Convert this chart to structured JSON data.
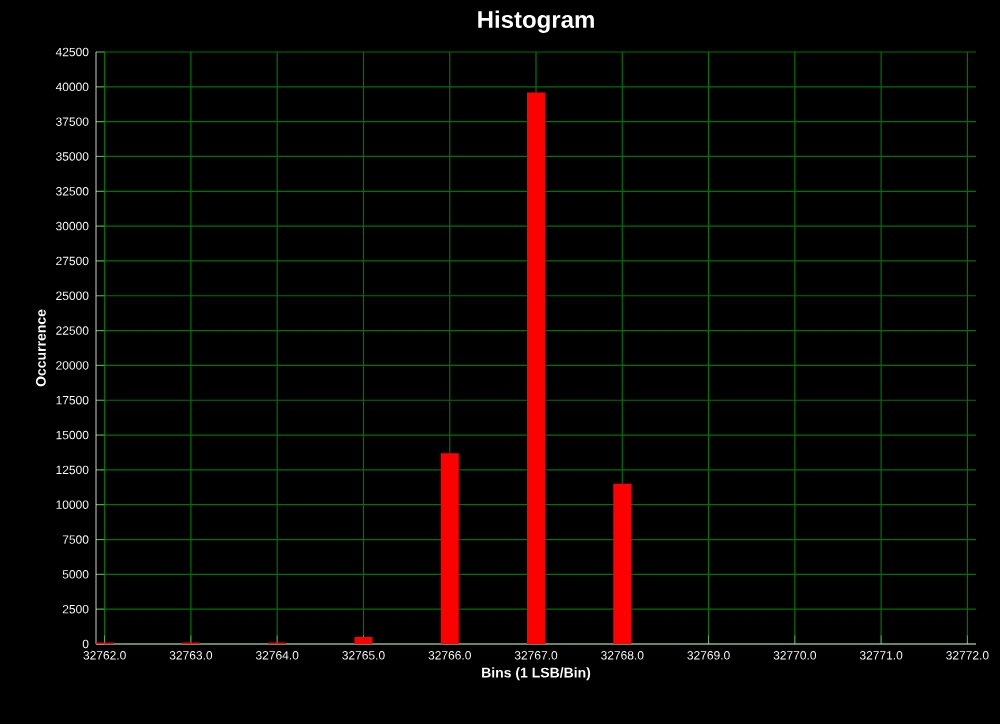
{
  "chart_data": {
    "type": "bar",
    "title": "Histogram",
    "xlabel": "Bins (1 LSB/Bin)",
    "ylabel": "Occurrence",
    "x": [
      32762,
      32763,
      32764,
      32765,
      32766,
      32767,
      32768,
      32769,
      32770,
      32771,
      32772
    ],
    "values": [
      100,
      100,
      100,
      500,
      13700,
      39600,
      11500,
      0,
      0,
      0,
      0
    ],
    "color": "#ff0000",
    "xlim": [
      32761.9,
      32772.1
    ],
    "xticks": [
      {
        "value": 32762,
        "label": "32762.0"
      },
      {
        "value": 32763,
        "label": "32763.0"
      },
      {
        "value": 32764,
        "label": "32764.0"
      },
      {
        "value": 32765,
        "label": "32765.0"
      },
      {
        "value": 32766,
        "label": "32766.0"
      },
      {
        "value": 32767,
        "label": "32767.0"
      },
      {
        "value": 32768,
        "label": "32768.0"
      },
      {
        "value": 32769,
        "label": "32769.0"
      },
      {
        "value": 32770,
        "label": "32770.0"
      },
      {
        "value": 32771,
        "label": "32771.0"
      },
      {
        "value": 32772,
        "label": "32772.0"
      }
    ],
    "ylim": [
      0,
      42500
    ],
    "yticks": [
      0,
      2500,
      5000,
      7500,
      10000,
      12500,
      15000,
      17500,
      20000,
      22500,
      25000,
      27500,
      30000,
      32500,
      35000,
      37500,
      40000,
      42500
    ],
    "grid": true
  }
}
